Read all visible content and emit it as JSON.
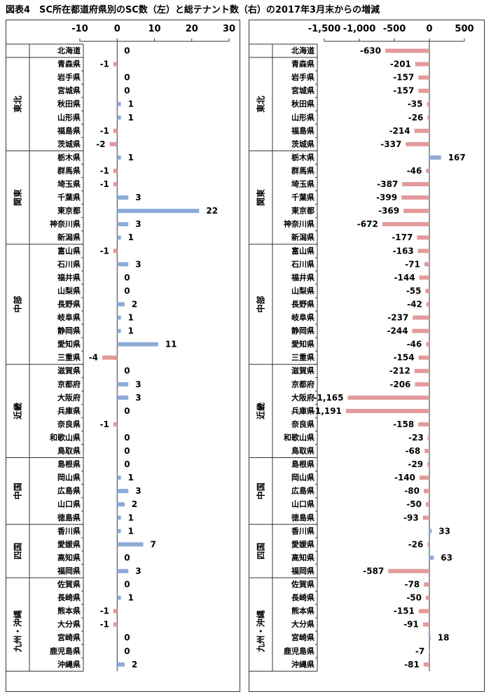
{
  "title": "図表4　SC所在都道府県別のSC数（左）と総テナント数（右）の2017年3月末からの増減",
  "regions": [
    {
      "name": "東北",
      "count": 7
    },
    {
      "name": "関東",
      "count": 7
    },
    {
      "name": "中部",
      "count": 9
    },
    {
      "name": "近畿",
      "count": 7
    },
    {
      "name": "中国",
      "count": 5
    },
    {
      "name": "四国",
      "count": 4
    },
    {
      "name": "九州・沖縄",
      "count": 8
    }
  ],
  "colors": {
    "positive": "#8eabd8",
    "negative": "#e39a9a",
    "line": "#333333"
  },
  "chart_data": [
    {
      "type": "bar",
      "orientation": "horizontal",
      "name": "SC数（左）",
      "xlim": [
        -10,
        30
      ],
      "xticks": [
        -10,
        0,
        10,
        20,
        30
      ],
      "xtick_labels": [
        "-10",
        "0",
        "10",
        "20",
        "30"
      ],
      "categories": [
        "北海道",
        "青森県",
        "岩手県",
        "宮城県",
        "秋田県",
        "山形県",
        "福島県",
        "茨城県",
        "栃木県",
        "群馬県",
        "埼玉県",
        "千葉県",
        "東京都",
        "神奈川県",
        "新潟県",
        "富山県",
        "石川県",
        "福井県",
        "山梨県",
        "長野県",
        "岐阜県",
        "静岡県",
        "愛知県",
        "三重県",
        "滋賀県",
        "京都府",
        "大阪府",
        "兵庫県",
        "奈良県",
        "和歌山県",
        "鳥取県",
        "島根県",
        "岡山県",
        "広島県",
        "山口県",
        "徳島県",
        "香川県",
        "愛媛県",
        "高知県",
        "福岡県",
        "佐賀県",
        "長崎県",
        "熊本県",
        "大分県",
        "宮崎県",
        "鹿児島県",
        "沖縄県"
      ],
      "values": [
        0,
        -1,
        0,
        0,
        1,
        1,
        -1,
        -2,
        1,
        -1,
        -1,
        3,
        22,
        3,
        1,
        -1,
        3,
        0,
        0,
        2,
        1,
        1,
        11,
        -4,
        0,
        3,
        3,
        0,
        -1,
        0,
        0,
        0,
        1,
        3,
        2,
        1,
        1,
        7,
        0,
        3,
        0,
        1,
        -1,
        -1,
        0,
        0,
        2
      ],
      "value_labels": [
        "0",
        "-1",
        "0",
        "0",
        "1",
        "1",
        "-1",
        "-2",
        "1",
        "-1",
        "-1",
        "3",
        "22",
        "3",
        "1",
        "-1",
        "3",
        "0",
        "0",
        "2",
        "1",
        "1",
        "11",
        "-4",
        "0",
        "3",
        "3",
        "0",
        "-1",
        "0",
        "0",
        "0",
        "1",
        "3",
        "2",
        "1",
        "1",
        "7",
        "0",
        "3",
        "0",
        "1",
        "-1",
        "-1",
        "0",
        "0",
        "2"
      ]
    },
    {
      "type": "bar",
      "orientation": "horizontal",
      "name": "総テナント数（右）",
      "xlim": [
        -1500,
        500
      ],
      "xticks": [
        -1500,
        -1000,
        -500,
        0,
        500
      ],
      "xtick_labels": [
        "-1,500",
        "-1,000",
        "-500",
        "0",
        "500"
      ],
      "categories": [
        "北海道",
        "青森県",
        "岩手県",
        "宮城県",
        "秋田県",
        "山形県",
        "福島県",
        "茨城県",
        "栃木県",
        "群馬県",
        "埼玉県",
        "千葉県",
        "東京都",
        "神奈川県",
        "新潟県",
        "富山県",
        "石川県",
        "福井県",
        "山梨県",
        "長野県",
        "岐阜県",
        "静岡県",
        "愛知県",
        "三重県",
        "滋賀県",
        "京都府",
        "大阪府",
        "兵庫県",
        "奈良県",
        "和歌山県",
        "鳥取県",
        "島根県",
        "岡山県",
        "広島県",
        "山口県",
        "徳島県",
        "香川県",
        "愛媛県",
        "高知県",
        "福岡県",
        "佐賀県",
        "長崎県",
        "熊本県",
        "大分県",
        "宮崎県",
        "鹿児島県",
        "沖縄県"
      ],
      "values": [
        -630,
        -201,
        -157,
        -157,
        -35,
        -26,
        -214,
        -337,
        167,
        -46,
        -387,
        -399,
        -369,
        -672,
        -177,
        -163,
        -71,
        -144,
        -55,
        -42,
        -237,
        -244,
        -46,
        -154,
        -212,
        -206,
        -1165,
        -1191,
        -158,
        -23,
        -68,
        -29,
        -140,
        -80,
        -50,
        -93,
        33,
        -26,
        63,
        -587,
        -78,
        -50,
        -151,
        -91,
        18,
        -7,
        -81
      ],
      "value_labels": [
        "-630",
        "-201",
        "-157",
        "-157",
        "-35",
        "-26",
        "-214",
        "-337",
        "167",
        "-46",
        "-387",
        "-399",
        "-369",
        "-672",
        "-177",
        "-163",
        "-71",
        "-144",
        "-55",
        "-42",
        "-237",
        "-244",
        "-46",
        "-154",
        "-212",
        "-206",
        "-1,165",
        "-1,191",
        "-158",
        "-23",
        "-68",
        "-29",
        "-140",
        "-80",
        "-50",
        "-93",
        "33",
        "-26",
        "63",
        "-587",
        "-78",
        "-50",
        "-151",
        "-91",
        "18",
        "-7",
        "-81"
      ]
    }
  ]
}
